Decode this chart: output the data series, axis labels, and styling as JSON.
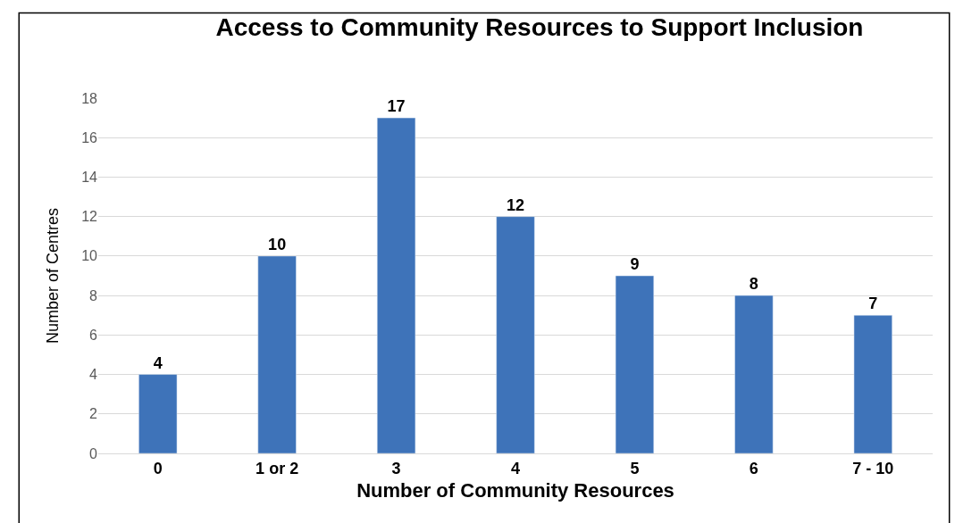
{
  "chart_data": {
    "type": "bar",
    "title": "Access to Community Resources to Support Inclusion",
    "xlabel": "Number of Community Resources",
    "ylabel": "Number of Centres",
    "categories": [
      "0",
      "1 or 2",
      "3",
      "4",
      "5",
      "6",
      "7 - 10"
    ],
    "values": [
      4,
      10,
      17,
      12,
      9,
      8,
      7
    ],
    "color": "#3e73b9",
    "ylim": [
      0,
      18
    ],
    "yticks": [
      0,
      2,
      4,
      6,
      8,
      10,
      12,
      14,
      16,
      18
    ],
    "grid": "y",
    "data_labels": true
  }
}
